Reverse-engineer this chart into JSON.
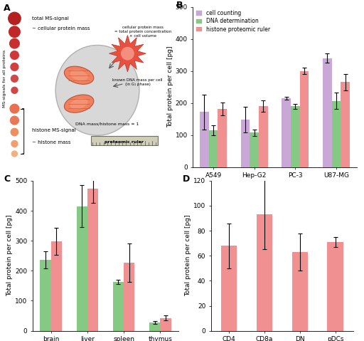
{
  "panel_B": {
    "title": "B",
    "categories": [
      "A549",
      "Hep-G2",
      "PC-3",
      "U87-MG"
    ],
    "series": {
      "cell_counting": {
        "values": [
          172,
          148,
          215,
          340
        ],
        "errors": [
          55,
          40,
          5,
          15
        ],
        "color": "#c9a8d8"
      },
      "DNA_determination": {
        "values": [
          115,
          108,
          190,
          207
        ],
        "errors": [
          15,
          10,
          8,
          25
        ],
        "color": "#85c985"
      },
      "histone_proteomic_ruler": {
        "values": [
          182,
          190,
          300,
          265
        ],
        "errors": [
          20,
          18,
          10,
          25
        ],
        "color": "#f09090"
      }
    },
    "ylabel": "Total protein per cell [pg]",
    "ylim": [
      0,
      500
    ],
    "yticks": [
      0,
      100,
      200,
      300,
      400,
      500
    ],
    "legend": [
      "cell counting",
      "DNA determination",
      "histone proteomic ruler"
    ]
  },
  "panel_C": {
    "title": "C",
    "categories": [
      "brain",
      "liver",
      "spleen",
      "thymus"
    ],
    "series": {
      "DNA_determination": {
        "values": [
          237,
          415,
          163,
          28
        ],
        "errors": [
          28,
          70,
          8,
          5
        ],
        "color": "#85c985"
      },
      "histone_proteomic_ruler": {
        "values": [
          298,
          473,
          227,
          43
        ],
        "errors": [
          45,
          48,
          65,
          8
        ],
        "color": "#f09090"
      }
    },
    "ylabel": "Total protein per cell [pg]",
    "ylim": [
      0,
      500
    ],
    "yticks": [
      0,
      100,
      200,
      300,
      400,
      500
    ]
  },
  "panel_D": {
    "title": "D",
    "categories": [
      "CD4",
      "CD8a",
      "DN",
      "pDCs"
    ],
    "series": {
      "histone_proteomic_ruler": {
        "values": [
          68,
          93,
          63,
          71
        ],
        "errors": [
          18,
          28,
          15,
          4
        ],
        "color": "#f09090"
      }
    },
    "ylabel": "Total protein per cell [pg]",
    "ylim": [
      0,
      120
    ],
    "yticks": [
      0,
      20,
      40,
      60,
      80,
      100,
      120
    ]
  },
  "dot_sizes": [
    16,
    14,
    13,
    11,
    10,
    9,
    8,
    18,
    16,
    14,
    13,
    11
  ],
  "dot_colors_top": [
    "#c0392b",
    "#c0392b",
    "#c0392b",
    "#c0392b",
    "#c0392b",
    "#c0392b",
    "#c0392b"
  ],
  "dot_colors_bottom": [
    "#e8846a",
    "#e8846a",
    "#e8a070",
    "#e8a070",
    "#f0b890"
  ],
  "background_color": "#ffffff"
}
